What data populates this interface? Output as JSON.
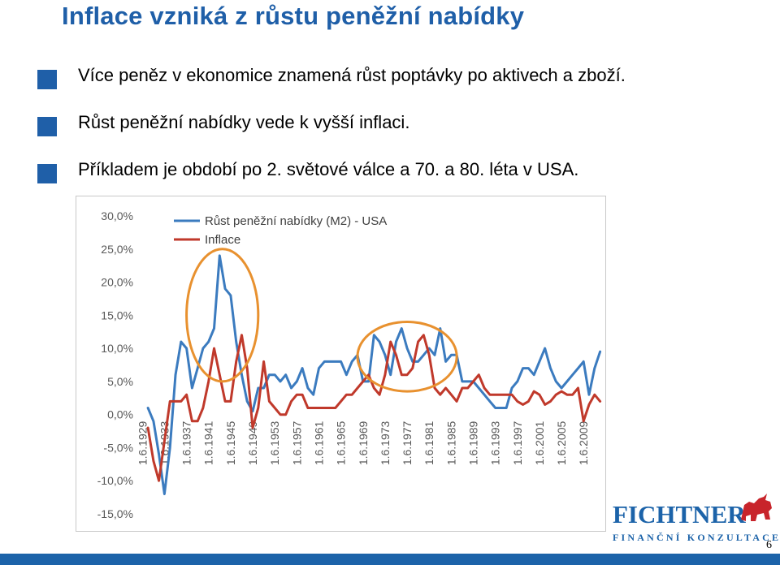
{
  "slide": {
    "title": "Inflace vzniká z růstu peněžní nabídky",
    "bullets": [
      "Více peněz v ekonomice znamená růst poptávky po aktivech a zboží.",
      "Růst peněžní nabídky vede k vyšší inflaci.",
      "Příkladem je období po 2. světové válce a 70. a 80. léta v USA."
    ],
    "page_number": "6"
  },
  "logo": {
    "name": "FICHTNER",
    "subtitle": "FINANČNÍ KONZULTACE",
    "color": "#1c63a9",
    "bull_color": "#c8242b"
  },
  "colors": {
    "accent": "#1f5fa8",
    "m2_series": "#3b7bbf",
    "inflation_series": "#c0392b",
    "highlight_circle": "#e8912f"
  },
  "chart_data": {
    "type": "line",
    "title": "",
    "xlabel": "",
    "ylabel": "",
    "ylim": [
      -15,
      30
    ],
    "yticks": [
      -15,
      -10,
      -5,
      0,
      5,
      10,
      15,
      20,
      25,
      30
    ],
    "ytick_labels": [
      "-15,0%",
      "-10,0%",
      "-5,0%",
      "0,0%",
      "5,0%",
      "10,0%",
      "15,0%",
      "20,0%",
      "25,0%",
      "30,0%"
    ],
    "xlim": [
      1929.4,
      2012.5
    ],
    "xtick_labels": [
      "1.6.1929",
      "1.6.1933",
      "1.6.1937",
      "1.6.1941",
      "1.6.1945",
      "1.6.1949",
      "1.6.1953",
      "1.6.1957",
      "1.6.1961",
      "1.6.1965",
      "1.6.1969",
      "1.6.1973",
      "1.6.1977",
      "1.6.1981",
      "1.6.1985",
      "1.6.1989",
      "1.6.1993",
      "1.6.1997",
      "1.6.2001",
      "1.6.2005",
      "1.6.2009"
    ],
    "legend": "top-left",
    "grid": false,
    "highlights": [
      {
        "x_range": [
          1937,
          1950
        ],
        "y_range": [
          5,
          25
        ]
      },
      {
        "x_range": [
          1968,
          1986
        ],
        "y_range": [
          3.5,
          14
        ]
      }
    ],
    "series": [
      {
        "name": "Růst peněžní nabídky (M2) - USA",
        "color": "#3b7bbf",
        "points": [
          [
            1930,
            1
          ],
          [
            1931,
            -1
          ],
          [
            1932,
            -6
          ],
          [
            1933,
            -12
          ],
          [
            1934,
            -5
          ],
          [
            1935,
            6
          ],
          [
            1936,
            11
          ],
          [
            1937,
            10
          ],
          [
            1938,
            4
          ],
          [
            1939,
            7
          ],
          [
            1940,
            10
          ],
          [
            1941,
            11
          ],
          [
            1942,
            13
          ],
          [
            1943,
            24
          ],
          [
            1944,
            19
          ],
          [
            1945,
            18
          ],
          [
            1946,
            11
          ],
          [
            1947,
            6
          ],
          [
            1948,
            2
          ],
          [
            1949,
            0.5
          ],
          [
            1950,
            4
          ],
          [
            1951,
            4
          ],
          [
            1952,
            6
          ],
          [
            1953,
            6
          ],
          [
            1954,
            5
          ],
          [
            1955,
            6
          ],
          [
            1956,
            4
          ],
          [
            1957,
            5
          ],
          [
            1958,
            7
          ],
          [
            1959,
            4
          ],
          [
            1960,
            3
          ],
          [
            1961,
            7
          ],
          [
            1962,
            8
          ],
          [
            1963,
            8
          ],
          [
            1964,
            8
          ],
          [
            1965,
            8
          ],
          [
            1966,
            6
          ],
          [
            1967,
            8
          ],
          [
            1968,
            9
          ],
          [
            1969,
            5
          ],
          [
            1970,
            5
          ],
          [
            1971,
            12
          ],
          [
            1972,
            11
          ],
          [
            1973,
            9
          ],
          [
            1974,
            6
          ],
          [
            1975,
            11
          ],
          [
            1976,
            13
          ],
          [
            1977,
            10
          ],
          [
            1978,
            8
          ],
          [
            1979,
            8
          ],
          [
            1980,
            9
          ],
          [
            1981,
            10
          ],
          [
            1982,
            9
          ],
          [
            1983,
            13
          ],
          [
            1984,
            8
          ],
          [
            1985,
            9
          ],
          [
            1986,
            9
          ],
          [
            1987,
            5
          ],
          [
            1988,
            5
          ],
          [
            1989,
            5
          ],
          [
            1990,
            4
          ],
          [
            1991,
            3
          ],
          [
            1992,
            2
          ],
          [
            1993,
            1
          ],
          [
            1994,
            1
          ],
          [
            1995,
            1
          ],
          [
            1996,
            4
          ],
          [
            1997,
            5
          ],
          [
            1998,
            7
          ],
          [
            1999,
            7
          ],
          [
            2000,
            6
          ],
          [
            2001,
            8
          ],
          [
            2002,
            10
          ],
          [
            2003,
            7
          ],
          [
            2004,
            5
          ],
          [
            2005,
            4
          ],
          [
            2006,
            5
          ],
          [
            2007,
            6
          ],
          [
            2008,
            7
          ],
          [
            2009,
            8
          ],
          [
            2010,
            3
          ],
          [
            2011,
            7
          ],
          [
            2012,
            9.5
          ]
        ]
      },
      {
        "name": "Inflace",
        "color": "#c0392b",
        "points": [
          [
            1930,
            -2
          ],
          [
            1931,
            -7
          ],
          [
            1932,
            -10
          ],
          [
            1933,
            -4
          ],
          [
            1934,
            2
          ],
          [
            1935,
            2
          ],
          [
            1936,
            2
          ],
          [
            1937,
            3
          ],
          [
            1938,
            -1
          ],
          [
            1939,
            -1
          ],
          [
            1940,
            1
          ],
          [
            1941,
            5
          ],
          [
            1942,
            10
          ],
          [
            1943,
            6
          ],
          [
            1944,
            2
          ],
          [
            1945,
            2
          ],
          [
            1946,
            8
          ],
          [
            1947,
            12
          ],
          [
            1948,
            7
          ],
          [
            1949,
            -2
          ],
          [
            1950,
            1
          ],
          [
            1951,
            8
          ],
          [
            1952,
            2
          ],
          [
            1953,
            1
          ],
          [
            1954,
            0
          ],
          [
            1955,
            0
          ],
          [
            1956,
            2
          ],
          [
            1957,
            3
          ],
          [
            1958,
            3
          ],
          [
            1959,
            1
          ],
          [
            1960,
            1
          ],
          [
            1961,
            1
          ],
          [
            1962,
            1
          ],
          [
            1963,
            1
          ],
          [
            1964,
            1
          ],
          [
            1965,
            2
          ],
          [
            1966,
            3
          ],
          [
            1967,
            3
          ],
          [
            1968,
            4
          ],
          [
            1969,
            5
          ],
          [
            1970,
            6
          ],
          [
            1971,
            4
          ],
          [
            1972,
            3
          ],
          [
            1973,
            6
          ],
          [
            1974,
            11
          ],
          [
            1975,
            9
          ],
          [
            1976,
            6
          ],
          [
            1977,
            6
          ],
          [
            1978,
            7
          ],
          [
            1979,
            11
          ],
          [
            1980,
            12
          ],
          [
            1981,
            9
          ],
          [
            1982,
            4
          ],
          [
            1983,
            3
          ],
          [
            1984,
            4
          ],
          [
            1985,
            3
          ],
          [
            1986,
            2
          ],
          [
            1987,
            4
          ],
          [
            1988,
            4
          ],
          [
            1989,
            5
          ],
          [
            1990,
            6
          ],
          [
            1991,
            4
          ],
          [
            1992,
            3
          ],
          [
            1993,
            3
          ],
          [
            1994,
            3
          ],
          [
            1995,
            3
          ],
          [
            1996,
            3
          ],
          [
            1997,
            2
          ],
          [
            1998,
            1.5
          ],
          [
            1999,
            2
          ],
          [
            2000,
            3.5
          ],
          [
            2001,
            3
          ],
          [
            2002,
            1.5
          ],
          [
            2003,
            2
          ],
          [
            2004,
            3
          ],
          [
            2005,
            3.5
          ],
          [
            2006,
            3
          ],
          [
            2007,
            3
          ],
          [
            2008,
            4
          ],
          [
            2009,
            -1
          ],
          [
            2010,
            1.5
          ],
          [
            2011,
            3
          ],
          [
            2012,
            2
          ]
        ]
      }
    ]
  }
}
